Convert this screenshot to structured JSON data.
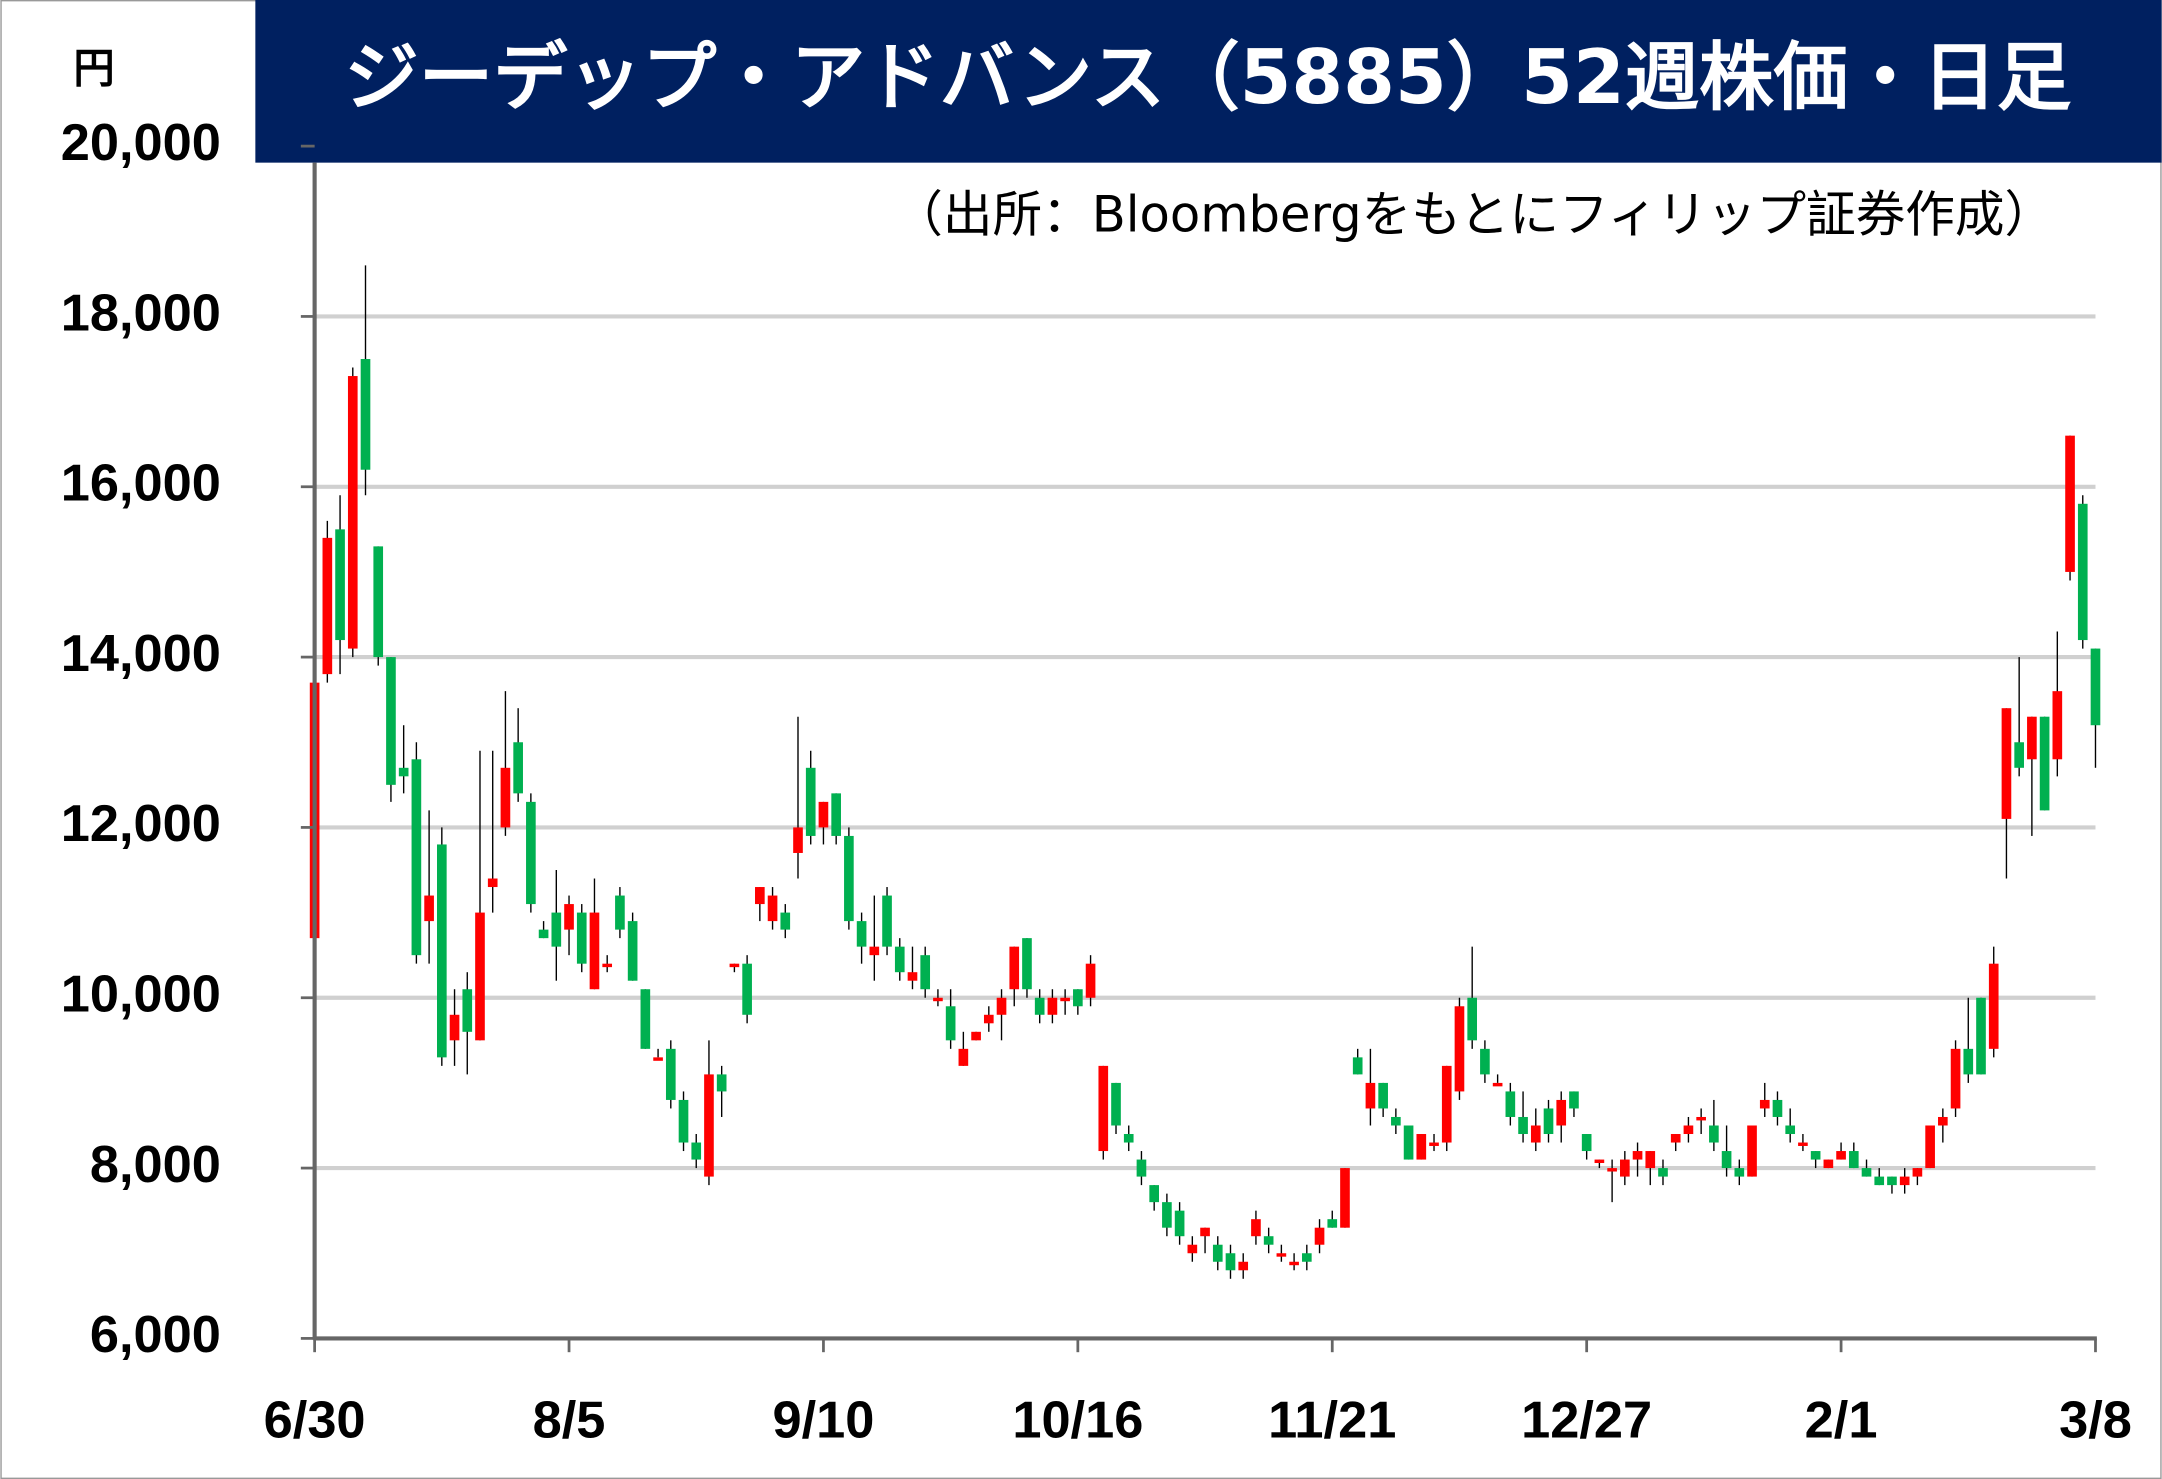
{
  "chart_data": {
    "type": "candlestick",
    "title": "ジーデップ・アドバンス（5885）52週株価・日足",
    "subtitle": "（出所：Bloombergをもとにフィリップ証券作成）",
    "y_unit": "円",
    "up_color": "#ff0000",
    "down_color": "#00b050",
    "grid": true,
    "ylim": [
      6000,
      20000
    ],
    "yticks": [
      {
        "value": 6000,
        "label": "6,000"
      },
      {
        "value": 8000,
        "label": "8,000"
      },
      {
        "value": 10000,
        "label": "10,000"
      },
      {
        "value": 12000,
        "label": "12,000"
      },
      {
        "value": 14000,
        "label": "14,000"
      },
      {
        "value": 16000,
        "label": "16,000"
      },
      {
        "value": 18000,
        "label": "18,000"
      },
      {
        "value": 20000,
        "label": "20,000"
      }
    ],
    "categories": [
      "6/30",
      null,
      null,
      null,
      null,
      null,
      null,
      null,
      null,
      null,
      null,
      null,
      null,
      null,
      null,
      null,
      null,
      null,
      null,
      null,
      "8/5",
      null,
      null,
      null,
      null,
      null,
      null,
      null,
      null,
      null,
      null,
      null,
      null,
      null,
      null,
      null,
      null,
      null,
      null,
      null,
      "9/10",
      null,
      null,
      null,
      null,
      null,
      null,
      null,
      null,
      null,
      null,
      null,
      null,
      null,
      null,
      null,
      null,
      null,
      null,
      null,
      "10/16",
      null,
      null,
      null,
      null,
      null,
      null,
      null,
      null,
      null,
      null,
      null,
      null,
      null,
      null,
      null,
      null,
      null,
      null,
      null,
      "11/21",
      null,
      null,
      null,
      null,
      null,
      null,
      null,
      null,
      null,
      null,
      null,
      null,
      null,
      null,
      null,
      null,
      null,
      null,
      null,
      "12/27",
      null,
      null,
      null,
      null,
      null,
      null,
      null,
      null,
      null,
      null,
      null,
      null,
      null,
      null,
      null,
      null,
      null,
      null,
      null,
      "2/1",
      null,
      null,
      null,
      null,
      null,
      null,
      null,
      null,
      null,
      null,
      null,
      null,
      null,
      null,
      null,
      null,
      null,
      null,
      null,
      "3/8"
    ],
    "ohlc": [
      [
        10700,
        13700,
        10700,
        13700
      ],
      [
        13800,
        15600,
        13700,
        15400
      ],
      [
        15500,
        15900,
        13800,
        14200
      ],
      [
        14100,
        17400,
        14000,
        17300
      ],
      [
        17500,
        18600,
        15900,
        16200
      ],
      [
        15300,
        15300,
        13900,
        14000
      ],
      [
        14000,
        14000,
        12300,
        12500
      ],
      [
        12700,
        13200,
        12400,
        12600
      ],
      [
        12800,
        13000,
        10400,
        10500
      ],
      [
        10900,
        12200,
        10400,
        11200
      ],
      [
        11800,
        12000,
        9200,
        9300
      ],
      [
        9500,
        10100,
        9200,
        9800
      ],
      [
        10100,
        10300,
        9100,
        9600
      ],
      [
        9500,
        12900,
        9500,
        11000
      ],
      [
        11300,
        12900,
        11000,
        11400
      ],
      [
        12000,
        13600,
        11900,
        12700
      ],
      [
        13000,
        13400,
        12300,
        12400
      ],
      [
        12300,
        12400,
        11000,
        11100
      ],
      [
        10800,
        10900,
        10700,
        10700
      ],
      [
        11000,
        11500,
        10200,
        10600
      ],
      [
        10800,
        11200,
        10500,
        11100
      ],
      [
        11000,
        11100,
        10300,
        10400
      ],
      [
        10100,
        11400,
        10100,
        11000
      ],
      [
        10400,
        10500,
        10300,
        10400
      ],
      [
        11200,
        11300,
        10700,
        10800
      ],
      [
        10900,
        11000,
        10200,
        10200
      ],
      [
        10100,
        10100,
        9400,
        9400
      ],
      [
        9300,
        9400,
        9300,
        9300
      ],
      [
        9400,
        9500,
        8700,
        8800
      ],
      [
        8800,
        8900,
        8200,
        8300
      ],
      [
        8300,
        8400,
        8000,
        8100
      ],
      [
        7900,
        9500,
        7800,
        9100
      ],
      [
        9100,
        9200,
        8600,
        8900
      ],
      [
        10400,
        10400,
        10300,
        10400
      ],
      [
        10400,
        10500,
        9700,
        9800
      ],
      [
        11100,
        11300,
        10900,
        11300
      ],
      [
        10900,
        11300,
        10800,
        11200
      ],
      [
        11000,
        11100,
        10700,
        10800
      ],
      [
        11700,
        13300,
        11400,
        12000
      ],
      [
        12700,
        12900,
        11800,
        11900
      ],
      [
        12000,
        12300,
        11800,
        12300
      ],
      [
        12400,
        12400,
        11800,
        11900
      ],
      [
        11900,
        12000,
        10800,
        10900
      ],
      [
        10900,
        11000,
        10400,
        10600
      ],
      [
        10500,
        11200,
        10200,
        10600
      ],
      [
        11200,
        11300,
        10500,
        10600
      ],
      [
        10600,
        10700,
        10200,
        10300
      ],
      [
        10200,
        10600,
        10100,
        10300
      ],
      [
        10500,
        10600,
        10000,
        10100
      ],
      [
        10000,
        10100,
        9900,
        10000
      ],
      [
        9900,
        10100,
        9400,
        9500
      ],
      [
        9200,
        9600,
        9200,
        9400
      ],
      [
        9500,
        9600,
        9500,
        9600
      ],
      [
        9700,
        9900,
        9600,
        9800
      ],
      [
        9800,
        10100,
        9500,
        10000
      ],
      [
        10100,
        10600,
        9900,
        10600
      ],
      [
        10700,
        10700,
        10000,
        10100
      ],
      [
        10000,
        10100,
        9700,
        9800
      ],
      [
        9800,
        10100,
        9700,
        10000
      ],
      [
        10000,
        10100,
        9800,
        10000
      ],
      [
        10100,
        10100,
        9800,
        9900
      ],
      [
        10000,
        10500,
        9900,
        10400
      ],
      [
        8200,
        9200,
        8100,
        9200
      ],
      [
        9000,
        9000,
        8400,
        8500
      ],
      [
        8400,
        8500,
        8200,
        8300
      ],
      [
        8100,
        8200,
        7800,
        7900
      ],
      [
        7800,
        7800,
        7500,
        7600
      ],
      [
        7600,
        7700,
        7200,
        7300
      ],
      [
        7500,
        7600,
        7100,
        7200
      ],
      [
        7000,
        7200,
        6900,
        7100
      ],
      [
        7200,
        7300,
        7000,
        7300
      ],
      [
        7100,
        7200,
        6800,
        6900
      ],
      [
        7000,
        7100,
        6700,
        6800
      ],
      [
        6800,
        7000,
        6700,
        6900
      ],
      [
        7200,
        7500,
        7100,
        7400
      ],
      [
        7200,
        7300,
        7000,
        7100
      ],
      [
        7000,
        7100,
        6900,
        7000
      ],
      [
        6900,
        7000,
        6800,
        6900
      ],
      [
        7000,
        7100,
        6800,
        6900
      ],
      [
        7100,
        7400,
        7000,
        7300
      ],
      [
        7400,
        7500,
        7300,
        7300
      ],
      [
        7300,
        8000,
        7300,
        8000
      ],
      [
        9300,
        9400,
        9100,
        9100
      ],
      [
        8700,
        9400,
        8500,
        9000
      ],
      [
        9000,
        9000,
        8600,
        8700
      ],
      [
        8600,
        8700,
        8400,
        8500
      ],
      [
        8500,
        8500,
        8100,
        8100
      ],
      [
        8100,
        8400,
        8100,
        8400
      ],
      [
        8300,
        8400,
        8200,
        8300
      ],
      [
        8300,
        9200,
        8200,
        9200
      ],
      [
        8900,
        10000,
        8800,
        9900
      ],
      [
        10000,
        10600,
        9400,
        9500
      ],
      [
        9400,
        9500,
        9000,
        9100
      ],
      [
        9000,
        9100,
        9000,
        9000
      ],
      [
        8900,
        9000,
        8500,
        8600
      ],
      [
        8600,
        8900,
        8300,
        8400
      ],
      [
        8300,
        8700,
        8200,
        8500
      ],
      [
        8700,
        8800,
        8300,
        8400
      ],
      [
        8500,
        8900,
        8300,
        8800
      ],
      [
        8900,
        8900,
        8600,
        8700
      ],
      [
        8400,
        8400,
        8100,
        8200
      ],
      [
        8100,
        8100,
        8000,
        8100
      ],
      [
        8000,
        8100,
        7600,
        8000
      ],
      [
        7900,
        8200,
        7800,
        8100
      ],
      [
        8100,
        8300,
        7900,
        8200
      ],
      [
        8000,
        8200,
        7800,
        8200
      ],
      [
        8000,
        8100,
        7800,
        7900
      ],
      [
        8300,
        8400,
        8200,
        8400
      ],
      [
        8400,
        8600,
        8300,
        8500
      ],
      [
        8600,
        8700,
        8400,
        8600
      ],
      [
        8500,
        8800,
        8200,
        8300
      ],
      [
        8200,
        8500,
        7900,
        8000
      ],
      [
        8000,
        8100,
        7800,
        7900
      ],
      [
        7900,
        8500,
        7900,
        8500
      ],
      [
        8700,
        9000,
        8600,
        8800
      ],
      [
        8800,
        8900,
        8500,
        8600
      ],
      [
        8500,
        8700,
        8300,
        8400
      ],
      [
        8300,
        8400,
        8200,
        8300
      ],
      [
        8200,
        8200,
        8000,
        8100
      ],
      [
        8000,
        8100,
        8000,
        8100
      ],
      [
        8100,
        8300,
        8100,
        8200
      ],
      [
        8200,
        8300,
        8000,
        8000
      ],
      [
        8000,
        8100,
        7900,
        7900
      ],
      [
        7900,
        8000,
        7800,
        7800
      ],
      [
        7900,
        7900,
        7700,
        7800
      ],
      [
        7800,
        8000,
        7700,
        7900
      ],
      [
        7900,
        8000,
        7800,
        8000
      ],
      [
        8000,
        8500,
        8000,
        8500
      ],
      [
        8500,
        8700,
        8300,
        8600
      ],
      [
        8700,
        9500,
        8600,
        9400
      ],
      [
        9400,
        10000,
        9000,
        9100
      ],
      [
        10000,
        10000,
        9100,
        9100
      ],
      [
        9400,
        10600,
        9300,
        10400
      ],
      [
        12100,
        13400,
        11400,
        13400
      ],
      [
        13000,
        14000,
        12600,
        12700
      ],
      [
        12800,
        13300,
        11900,
        13300
      ],
      [
        13300,
        13300,
        12200,
        12200
      ],
      [
        12800,
        14300,
        12600,
        13600
      ],
      [
        15000,
        16600,
        14900,
        16600
      ],
      [
        15800,
        15900,
        14100,
        14200
      ],
      [
        14100,
        14100,
        12700,
        13200
      ]
    ]
  }
}
